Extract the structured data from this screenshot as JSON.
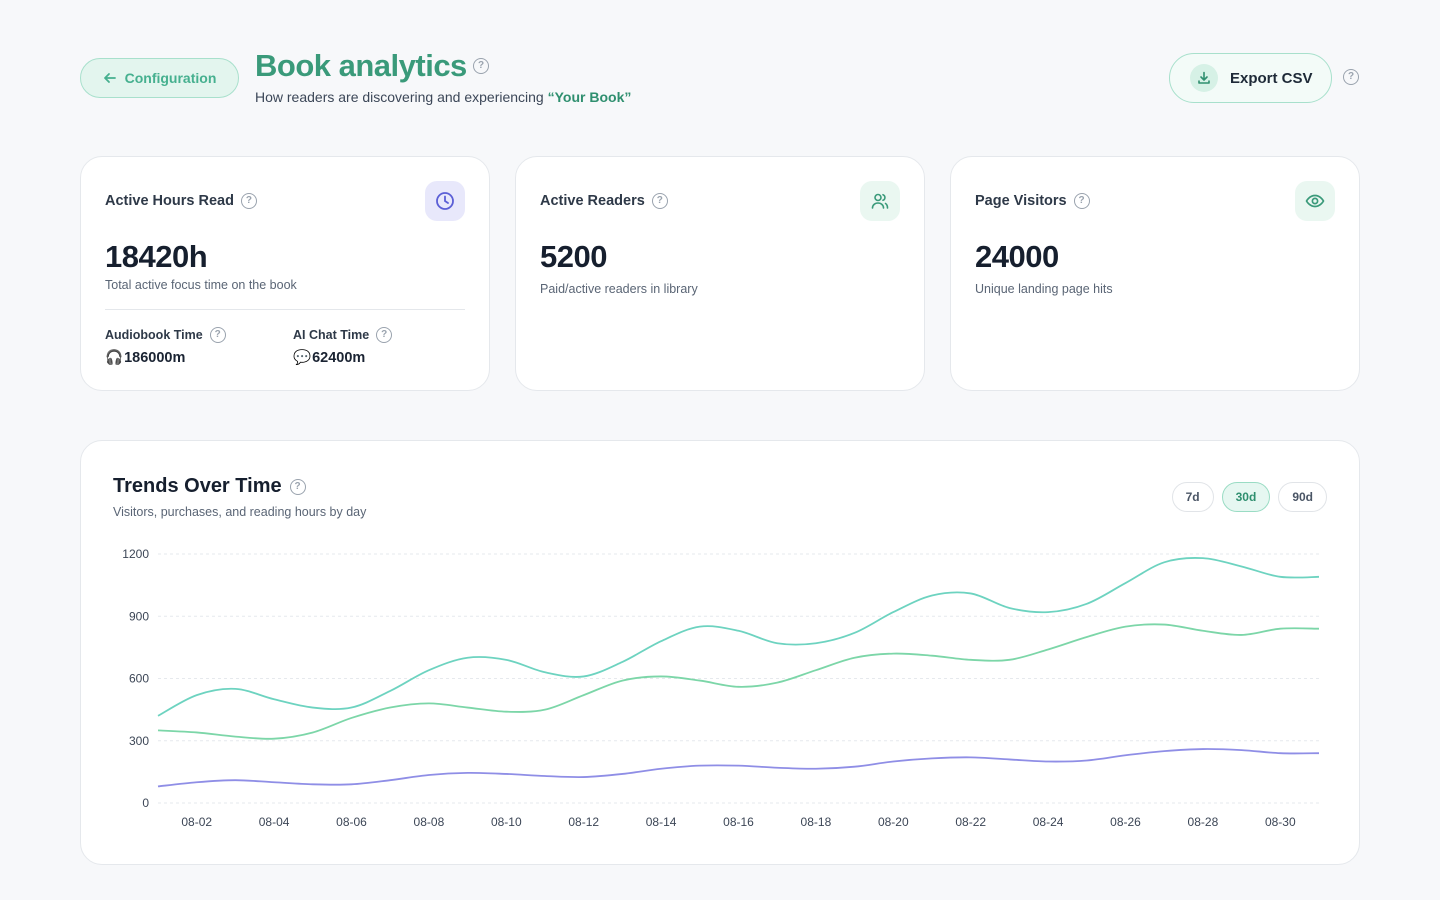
{
  "header": {
    "back_label": "Configuration",
    "title": "Book analytics",
    "subtitle_prefix": "How readers are discovering and experiencing",
    "book_name": "“Your Book”",
    "export_label": "Export CSV"
  },
  "cards": [
    {
      "label": "Active Hours Read",
      "icon": "clock-icon",
      "value": "18420h",
      "desc": "Total active focus time on the book",
      "sub_stats": [
        {
          "label": "Audiobook Time",
          "icon": "headphones-icon",
          "emoji": "🎧",
          "value": "186000m"
        },
        {
          "label": "AI Chat Time",
          "icon": "speech-bubble-icon",
          "emoji": "💬",
          "value": "62400m"
        }
      ]
    },
    {
      "label": "Active Readers",
      "icon": "users-icon",
      "value": "5200",
      "desc": "Paid/active readers in library"
    },
    {
      "label": "Page Visitors",
      "icon": "eye-icon",
      "value": "24000",
      "desc": "Unique landing page hits"
    }
  ],
  "trends": {
    "title": "Trends Over Time",
    "subtitle": "Visitors, purchases, and reading hours by day",
    "ranges": [
      "7d",
      "30d",
      "90d"
    ],
    "active_range": "30d"
  },
  "colors": {
    "brand": "#3a9a7a",
    "series_teal": "#6dd3c0",
    "series_green": "#7cd6a8",
    "series_purple": "#8f8ee6"
  },
  "chart_data": {
    "type": "line",
    "x": [
      "08-01",
      "08-02",
      "08-03",
      "08-04",
      "08-05",
      "08-06",
      "08-07",
      "08-08",
      "08-09",
      "08-10",
      "08-11",
      "08-12",
      "08-13",
      "08-14",
      "08-15",
      "08-16",
      "08-17",
      "08-18",
      "08-19",
      "08-20",
      "08-21",
      "08-22",
      "08-23",
      "08-24",
      "08-25",
      "08-26",
      "08-27",
      "08-28",
      "08-29",
      "08-30",
      "08-31"
    ],
    "x_ticks": [
      "08-02",
      "08-04",
      "08-06",
      "08-08",
      "08-10",
      "08-12",
      "08-14",
      "08-16",
      "08-18",
      "08-20",
      "08-22",
      "08-24",
      "08-26",
      "08-28",
      "08-30"
    ],
    "series": [
      {
        "color": "#6dd3c0",
        "values": [
          420,
          520,
          550,
          500,
          460,
          460,
          540,
          640,
          700,
          690,
          630,
          610,
          680,
          780,
          850,
          830,
          770,
          770,
          820,
          920,
          1000,
          1010,
          940,
          920,
          960,
          1060,
          1160,
          1180,
          1140,
          1090,
          1090
        ]
      },
      {
        "color": "#7cd6a8",
        "values": [
          350,
          340,
          320,
          310,
          340,
          410,
          460,
          480,
          460,
          440,
          450,
          520,
          590,
          610,
          590,
          560,
          580,
          640,
          700,
          720,
          710,
          690,
          690,
          740,
          800,
          850,
          860,
          830,
          810,
          840,
          840
        ]
      },
      {
        "color": "#8f8ee6",
        "values": [
          80,
          100,
          110,
          100,
          90,
          90,
          110,
          135,
          145,
          140,
          130,
          125,
          140,
          165,
          180,
          180,
          170,
          165,
          175,
          200,
          215,
          220,
          210,
          200,
          205,
          230,
          250,
          260,
          255,
          240,
          240
        ]
      }
    ],
    "yticks": [
      0,
      300,
      600,
      900,
      1200
    ],
    "ylim": [
      0,
      1200
    ],
    "grid": true,
    "legend": false
  }
}
